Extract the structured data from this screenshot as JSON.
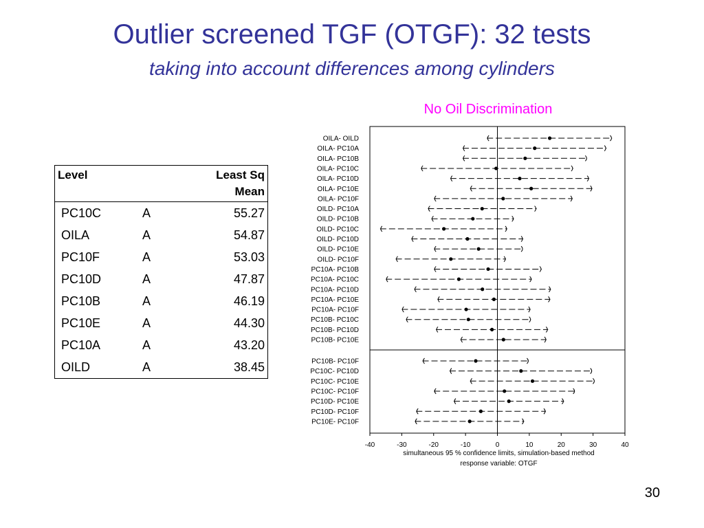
{
  "slide": {
    "title": "Outlier screened TGF (OTGF): 32 tests",
    "subtitle": "taking into account differences among cylinders",
    "number": "30"
  },
  "table": {
    "headers": {
      "level": "Level",
      "lsm_line1": "Least Sq",
      "lsm_line2": "Mean"
    },
    "rows": [
      {
        "level": "PC10C",
        "group": "A",
        "mean": "55.27"
      },
      {
        "level": "OILA",
        "group": "A",
        "mean": "54.87"
      },
      {
        "level": "PC10F",
        "group": "A",
        "mean": "53.03"
      },
      {
        "level": "PC10D",
        "group": "A",
        "mean": "47.87"
      },
      {
        "level": "PC10B",
        "group": "A",
        "mean": "46.19"
      },
      {
        "level": "PC10E",
        "group": "A",
        "mean": "44.30"
      },
      {
        "level": "PC10A",
        "group": "A",
        "mean": "43.20"
      },
      {
        "level": "OILD",
        "group": "A",
        "mean": "38.45"
      }
    ]
  },
  "chart_data": {
    "type": "scatter",
    "title": "No Oil Discrimination",
    "xlabel": "simultaneous  95 % confidence limits, simulation-based method",
    "xlabel2": "response variable: OTGF",
    "xlim": [
      -40,
      40
    ],
    "xticks": [
      -40,
      -30,
      -20,
      -10,
      0,
      10,
      20,
      30,
      40
    ],
    "colors": {
      "title": "#ff00ff",
      "slide_title": "#333399",
      "marks": "#000000"
    },
    "panels": [
      [
        {
          "label": "OILA- OILD",
          "estimate": 16.4,
          "lower": -3.3,
          "upper": 36.0
        },
        {
          "label": "OILA- PC10A",
          "estimate": 11.7,
          "lower": -10.9,
          "upper": 34.2
        },
        {
          "label": "OILA- PC10B",
          "estimate": 8.7,
          "lower": -10.9,
          "upper": 28.2
        },
        {
          "label": "OILA- PC10C",
          "estimate": -0.4,
          "lower": -24.0,
          "upper": 23.8
        },
        {
          "label": "OILA- PC10D",
          "estimate": 7.0,
          "lower": -14.8,
          "upper": 28.8
        },
        {
          "label": "OILA- PC10E",
          "estimate": 10.6,
          "lower": -8.6,
          "upper": 29.8
        },
        {
          "label": "OILA- PC10F",
          "estimate": 1.8,
          "lower": -19.9,
          "upper": 23.6
        },
        {
          "label": "OILD- PC10A",
          "estimate": -4.8,
          "lower": -21.8,
          "upper": 12.3
        },
        {
          "label": "OILD- PC10B",
          "estimate": -7.7,
          "lower": -20.7,
          "upper": 5.2
        },
        {
          "label": "OILD- PC10C",
          "estimate": -16.8,
          "lower": -36.8,
          "upper": 3.1
        },
        {
          "label": "OILD- PC10D",
          "estimate": -9.4,
          "lower": -27.0,
          "upper": 8.1
        },
        {
          "label": "OILD- PC10E",
          "estimate": -5.9,
          "lower": -19.9,
          "upper": 8.1
        },
        {
          "label": "OILD- PC10F",
          "estimate": -14.6,
          "lower": -31.9,
          "upper": 2.7
        },
        {
          "label": "PC10A- PC10B",
          "estimate": -2.9,
          "lower": -19.9,
          "upper": 13.9
        },
        {
          "label": "PC10A- PC10C",
          "estimate": -12.1,
          "lower": -35.0,
          "upper": 10.8
        },
        {
          "label": "PC10A- PC10D",
          "estimate": -4.7,
          "lower": -26.1,
          "upper": 16.8
        },
        {
          "label": "PC10A- PC10E",
          "estimate": -1.1,
          "lower": -18.8,
          "upper": 16.6
        },
        {
          "label": "PC10A- PC10F",
          "estimate": -9.8,
          "lower": -30.0,
          "upper": 10.4
        },
        {
          "label": "PC10B- PC10C",
          "estimate": -9.1,
          "lower": -28.7,
          "upper": 10.6
        },
        {
          "label": "PC10B- PC10D",
          "estimate": -1.7,
          "lower": -19.3,
          "upper": 15.9
        },
        {
          "label": "PC10B- PC10E",
          "estimate": 1.9,
          "lower": -11.6,
          "upper": 15.4
        }
      ],
      [
        {
          "label": "PC10B- PC10F",
          "estimate": -6.8,
          "lower": -23.5,
          "upper": 9.9
        },
        {
          "label": "PC10C- PC10D",
          "estimate": 7.4,
          "lower": -15.0,
          "upper": 29.8
        },
        {
          "label": "PC10C- PC10E",
          "estimate": 11.0,
          "lower": -8.6,
          "upper": 30.6
        },
        {
          "label": "PC10C- PC10F",
          "estimate": 2.2,
          "lower": -19.9,
          "upper": 24.4
        },
        {
          "label": "PC10D- PC10E",
          "estimate": 3.6,
          "lower": -13.7,
          "upper": 20.9
        },
        {
          "label": "PC10D- PC10F",
          "estimate": -5.2,
          "lower": -25.5,
          "upper": 15.2
        },
        {
          "label": "PC10E- PC10F",
          "estimate": -8.7,
          "lower": -25.9,
          "upper": 8.4
        }
      ]
    ]
  }
}
